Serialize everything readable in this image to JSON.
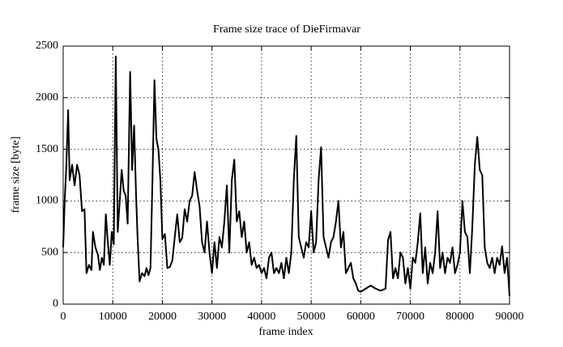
{
  "chart_data": {
    "type": "line",
    "title": "Frame size trace of DieFirmavar",
    "x_label": "frame index",
    "y_label": "frame size [byte]",
    "xlim": [
      0,
      90000
    ],
    "xticks": [
      0,
      10000,
      20000,
      30000,
      40000,
      50000,
      60000,
      70000,
      80000,
      90000
    ],
    "ylim": [
      0,
      2500
    ],
    "yticks": [
      0,
      500,
      1000,
      1500,
      2000,
      2500
    ],
    "grid": true,
    "series": [
      {
        "color": "#000000",
        "x": [
          0,
          300,
          600,
          1000,
          1300,
          1800,
          2300,
          2800,
          3300,
          3800,
          4300,
          4700,
          5200,
          5700,
          6000,
          6500,
          7000,
          7400,
          7800,
          8200,
          8600,
          9000,
          9400,
          9800,
          10200,
          10600,
          11000,
          11400,
          11800,
          12200,
          12600,
          13000,
          13500,
          13900,
          14300,
          14700,
          15000,
          15400,
          15900,
          16400,
          16800,
          17200,
          17600,
          18000,
          18400,
          18800,
          19200,
          19600,
          20000,
          20500,
          21000,
          21500,
          22000,
          22500,
          23000,
          23500,
          24000,
          24500,
          25000,
          25500,
          26000,
          26500,
          27000,
          27500,
          28000,
          28500,
          29000,
          29500,
          30000,
          30500,
          31000,
          31500,
          32000,
          32500,
          33000,
          33500,
          34000,
          34500,
          35000,
          35500,
          36000,
          36500,
          37000,
          37500,
          38000,
          38500,
          39000,
          39500,
          40000,
          40500,
          41000,
          41500,
          42000,
          42500,
          43000,
          43500,
          44000,
          44500,
          45000,
          45500,
          46000,
          46500,
          47000,
          47500,
          48000,
          48500,
          49000,
          49500,
          50000,
          50500,
          51000,
          51500,
          52000,
          52500,
          53000,
          53500,
          54000,
          54500,
          55000,
          55500,
          56000,
          56500,
          57000,
          57500,
          58000,
          58500,
          59000,
          59500,
          60000,
          61000,
          62000,
          63000,
          64000,
          65000,
          65500,
          66000,
          66500,
          67000,
          67500,
          68000,
          68500,
          69000,
          69500,
          70000,
          70500,
          71000,
          71500,
          72000,
          72500,
          73000,
          73500,
          74000,
          74500,
          75000,
          75500,
          76000,
          76500,
          77000,
          77500,
          78000,
          78500,
          79000,
          79500,
          80000,
          80500,
          81000,
          81500,
          82000,
          82500,
          83000,
          83500,
          84000,
          84500,
          85000,
          85500,
          86000,
          86500,
          87000,
          87500,
          88000,
          88500,
          89000,
          89500,
          90000
        ],
        "values": [
          550,
          1000,
          1300,
          1880,
          1200,
          1350,
          1150,
          1350,
          1250,
          900,
          920,
          300,
          380,
          330,
          700,
          550,
          480,
          330,
          450,
          380,
          870,
          600,
          380,
          700,
          580,
          2400,
          700,
          1000,
          1300,
          1100,
          1050,
          780,
          2250,
          1300,
          1730,
          1050,
          650,
          220,
          300,
          270,
          350,
          280,
          350,
          1200,
          2170,
          1600,
          1500,
          1200,
          630,
          680,
          350,
          360,
          420,
          650,
          870,
          600,
          640,
          920,
          800,
          1000,
          1050,
          1280,
          1100,
          950,
          600,
          500,
          800,
          500,
          300,
          600,
          350,
          650,
          550,
          800,
          1150,
          500,
          1200,
          1400,
          800,
          900,
          650,
          800,
          500,
          600,
          380,
          450,
          350,
          380,
          300,
          350,
          250,
          450,
          500,
          300,
          350,
          300,
          400,
          250,
          450,
          300,
          500,
          1200,
          1630,
          650,
          550,
          450,
          600,
          550,
          900,
          500,
          600,
          1200,
          1520,
          650,
          550,
          450,
          600,
          650,
          800,
          1000,
          550,
          700,
          300,
          350,
          400,
          250,
          200,
          130,
          120,
          150,
          180,
          150,
          130,
          150,
          620,
          700,
          250,
          350,
          250,
          500,
          450,
          200,
          350,
          150,
          450,
          400,
          600,
          880,
          300,
          550,
          200,
          400,
          300,
          500,
          900,
          350,
          500,
          300,
          450,
          400,
          550,
          300,
          380,
          500,
          1000,
          700,
          650,
          300,
          750,
          1350,
          1620,
          1300,
          1250,
          550,
          400,
          350,
          450,
          300,
          450,
          380,
          560,
          300,
          450,
          80
        ]
      }
    ]
  }
}
